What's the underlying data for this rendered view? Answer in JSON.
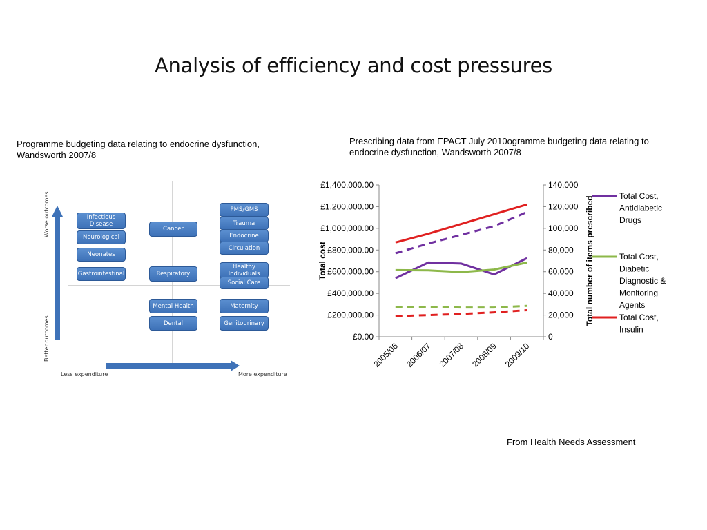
{
  "slide": {
    "title": "Analysis of efficiency and cost pressures",
    "left_caption": "Programme budgeting data relating to endocrine dysfunction, Wandsworth 2007/8",
    "right_caption": "Prescribing data from EPACT July 2010ogramme budgeting data relating to endocrine dysfunction, Wandsworth 2007/8",
    "source_note": "From Health Needs Assessment"
  },
  "matrix": {
    "y_axis_top": "Worse outcomes",
    "y_axis_bottom": "Better outcomes",
    "x_axis_left": "Less expenditure",
    "x_axis_right": "More expenditure",
    "box_color": "#4a80c4",
    "boxes": [
      "Infectious Disease",
      "Neurological",
      "Neonates",
      "Gastrointestinal",
      "Cancer",
      "Respiratory",
      "Mental Health",
      "Dental",
      "PMS/GMS",
      "Trauma",
      "Endocrine",
      "Circulation",
      "Healthy Individuals",
      "Social Care",
      "Maternity",
      "Genitourinary"
    ]
  },
  "chart_data": {
    "type": "line",
    "title": "",
    "xlabel": "",
    "ylabel": "Total cost",
    "y2label": "Total number of items prescribed",
    "categories": [
      "2005/06",
      "2006/07",
      "2007/08",
      "2008/09",
      "2009/10"
    ],
    "ylim": [
      0,
      1400000
    ],
    "y2lim": [
      0,
      140000
    ],
    "y_ticks": [
      "£0.00",
      "£200,000.00",
      "£400,000.00",
      "£600,000.00",
      "£800,000.00",
      "£1,000,000.00",
      "£1,200,000.00",
      "£1,400,000.00"
    ],
    "y2_ticks": [
      "0",
      "20,000",
      "40,000",
      "60,000",
      "80,000",
      "100,000",
      "120,000",
      "140,000"
    ],
    "series": [
      {
        "name": "Total Cost, Antidiabetic Drugs",
        "axis": "left",
        "style": "solid",
        "color": "#7030a0",
        "values": [
          540000,
          685000,
          675000,
          575000,
          725000
        ]
      },
      {
        "name": "Total Cost, Diabetic Diagnostic & Monitoring Agents",
        "axis": "left",
        "style": "solid",
        "color": "#8db84a",
        "values": [
          615000,
          612000,
          597000,
          620000,
          685000
        ]
      },
      {
        "name": "Total Cost, Insulin",
        "axis": "left",
        "style": "solid",
        "color": "#e02020",
        "values": [
          870000,
          950000,
          1040000,
          1130000,
          1220000
        ]
      },
      {
        "name": "",
        "axis": "right",
        "style": "dashed",
        "color": "#7030a0",
        "values": [
          77000,
          86000,
          94000,
          102000,
          115000
        ]
      },
      {
        "name": "",
        "axis": "right",
        "style": "dashed",
        "color": "#8db84a",
        "values": [
          27500,
          27500,
          27000,
          27000,
          28500
        ]
      },
      {
        "name": "",
        "axis": "right",
        "style": "dashed",
        "color": "#e02020",
        "values": [
          19000,
          20000,
          21000,
          22500,
          24500
        ]
      }
    ],
    "legend_entries": [
      "Total Cost, Antidiabetic Drugs",
      "Total Cost, Diabetic Diagnostic & Monitoring Agents",
      "Total Cost, Insulin"
    ],
    "legend_position": "right",
    "grid": false
  }
}
